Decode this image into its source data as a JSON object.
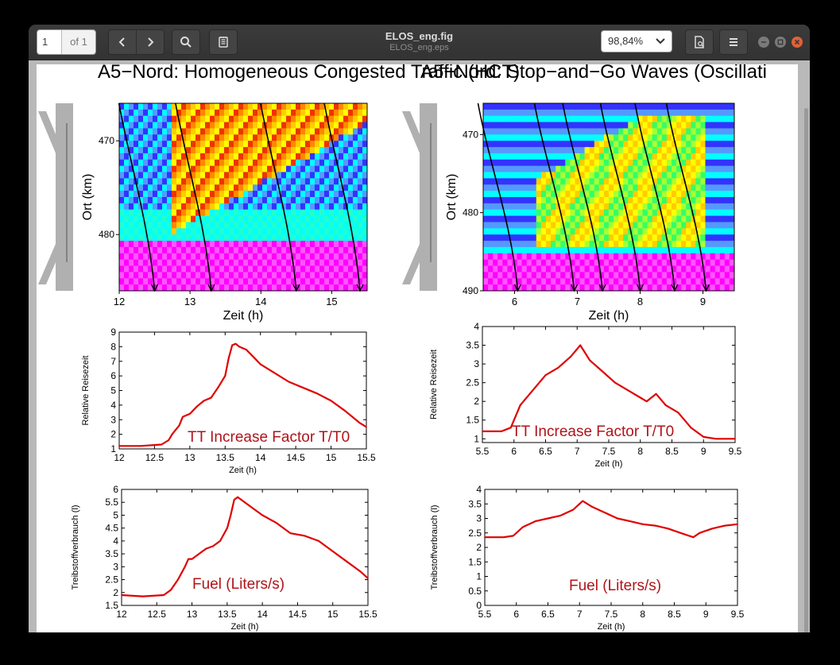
{
  "toolbar": {
    "page_current": "1",
    "page_total": "of 1",
    "title": "ELOS_eng.fig",
    "subtitle": "ELOS_eng.eps",
    "zoom": "98,84%",
    "icons": [
      "chevron-left-icon",
      "chevron-right-icon",
      "search-icon",
      "annotations-icon",
      "chevron-down-icon",
      "document-icon",
      "menu-icon",
      "minimize-icon",
      "maximize-icon",
      "close-icon"
    ]
  },
  "figure": {
    "left_title": "A5−Nord: Homogeneous Congested Traffic (HCT)",
    "right_title": "A5−Nord: Stop−and−Go Waves (Oscillati",
    "colors": {
      "curve": "#e00000",
      "label": "#b0141a",
      "trajectory": "#000000",
      "road": "#b0b0b0"
    }
  },
  "chart_data": [
    {
      "type": "heatmap",
      "panel": "left-top",
      "xlabel": "Zeit (h)",
      "ylabel": "Ort (km)",
      "xlim": [
        12,
        15.5
      ],
      "ylim": [
        486,
        466
      ],
      "xticks": [
        "12",
        "13",
        "14",
        "15"
      ],
      "yticks": [
        "470",
        "480"
      ],
      "trajectory_end_times": [
        12.5,
        13.3,
        14.5,
        15.4
      ]
    },
    {
      "type": "heatmap",
      "panel": "right-top",
      "xlabel": "Zeit (h)",
      "ylabel": "Ort (km)",
      "xlim": [
        5.5,
        9.5
      ],
      "ylim": [
        490,
        466
      ],
      "xticks": [
        "6",
        "7",
        "8",
        "9"
      ],
      "yticks": [
        "470",
        "480",
        "490"
      ],
      "trajectory_end_times": [
        6.05,
        6.95,
        7.4,
        8.0,
        8.55,
        9.05
      ]
    },
    {
      "type": "line",
      "panel": "left-middle",
      "xlabel": "Zeit (h)",
      "ylabel": "Relative Reisezeit",
      "annotation": "TT Increase Factor T/T0",
      "xlim": [
        12,
        15.5
      ],
      "ylim": [
        1,
        9
      ],
      "xticks": [
        "12",
        "12.5",
        "13",
        "13.5",
        "14",
        "14.5",
        "15",
        "15.5"
      ],
      "yticks": [
        "1",
        "2",
        "3",
        "4",
        "5",
        "6",
        "7",
        "8",
        "9"
      ],
      "series": [
        {
          "x": [
            12.0,
            12.3,
            12.6,
            12.7,
            12.75,
            12.85,
            12.9,
            12.95,
            13.0,
            13.1,
            13.2,
            13.3,
            13.4,
            13.5,
            13.55,
            13.6,
            13.65,
            13.7,
            13.8,
            13.9,
            14.0,
            14.2,
            14.4,
            14.6,
            14.8,
            15.0,
            15.2,
            15.4,
            15.5
          ],
          "values": [
            1.2,
            1.2,
            1.3,
            1.6,
            2.0,
            2.6,
            3.2,
            3.3,
            3.4,
            3.9,
            4.3,
            4.5,
            5.2,
            6.0,
            7.2,
            8.1,
            8.2,
            8.0,
            7.8,
            7.3,
            6.8,
            6.2,
            5.6,
            5.2,
            4.8,
            4.3,
            3.6,
            2.8,
            2.5
          ]
        }
      ]
    },
    {
      "type": "line",
      "panel": "right-middle",
      "xlabel": "Zeit (h)",
      "ylabel": "Relative Reisezeit",
      "annotation": "TT Increase Factor T/T0",
      "xlim": [
        5.5,
        9.5
      ],
      "ylim": [
        0.9,
        4
      ],
      "xticks": [
        "5.5",
        "6",
        "6.5",
        "7",
        "7.5",
        "8",
        "8.5",
        "9",
        "9.5"
      ],
      "yticks": [
        "1",
        "1.5",
        "2",
        "2.5",
        "3",
        "3.5",
        "4"
      ],
      "series": [
        {
          "x": [
            5.5,
            5.8,
            5.95,
            6.1,
            6.3,
            6.5,
            6.7,
            6.9,
            7.05,
            7.2,
            7.4,
            7.6,
            7.8,
            8.0,
            8.1,
            8.25,
            8.4,
            8.6,
            8.8,
            9.0,
            9.2,
            9.5
          ],
          "values": [
            1.2,
            1.2,
            1.3,
            1.9,
            2.3,
            2.7,
            2.9,
            3.2,
            3.5,
            3.1,
            2.8,
            2.5,
            2.3,
            2.1,
            2.0,
            2.2,
            1.9,
            1.7,
            1.3,
            1.05,
            1.0,
            1.0
          ]
        }
      ]
    },
    {
      "type": "line",
      "panel": "left-bottom",
      "xlabel": "Zeit (h)",
      "ylabel": "Treibstoffverbrauch (l)",
      "annotation": "Fuel (Liters/s)",
      "xlim": [
        12,
        15.5
      ],
      "ylim": [
        1.5,
        6
      ],
      "xticks": [
        "12",
        "12.5",
        "13",
        "13.5",
        "14",
        "14.5",
        "15",
        "15.5"
      ],
      "yticks": [
        "1.5",
        "2",
        "2.5",
        "3",
        "3.5",
        "4",
        "4.5",
        "5",
        "5.5",
        "6"
      ],
      "series": [
        {
          "x": [
            12.0,
            12.3,
            12.6,
            12.7,
            12.8,
            12.9,
            12.95,
            13.0,
            13.1,
            13.2,
            13.3,
            13.4,
            13.5,
            13.55,
            13.6,
            13.65,
            13.7,
            13.8,
            13.9,
            14.0,
            14.2,
            14.4,
            14.6,
            14.8,
            15.0,
            15.2,
            15.4,
            15.5
          ],
          "values": [
            1.9,
            1.85,
            1.9,
            2.1,
            2.5,
            3.0,
            3.3,
            3.3,
            3.5,
            3.7,
            3.8,
            4.0,
            4.5,
            5.0,
            5.6,
            5.7,
            5.6,
            5.4,
            5.2,
            5.0,
            4.7,
            4.3,
            4.2,
            4.0,
            3.6,
            3.2,
            2.8,
            2.55
          ]
        }
      ]
    },
    {
      "type": "line",
      "panel": "right-bottom",
      "xlabel": "Zeit (h)",
      "ylabel": "Treibstoffverbrauch (l)",
      "annotation": "Fuel (Liters/s)",
      "xlim": [
        5.5,
        9.5
      ],
      "ylim": [
        0,
        4
      ],
      "xticks": [
        "5.5",
        "6",
        "6.5",
        "7",
        "7.5",
        "8",
        "8.5",
        "9",
        "9.5"
      ],
      "yticks": [
        "0",
        "0.5",
        "1",
        "1.5",
        "2",
        "2.5",
        "3",
        "3.5",
        "4"
      ],
      "series": [
        {
          "x": [
            5.5,
            5.8,
            5.95,
            6.1,
            6.3,
            6.5,
            6.7,
            6.9,
            7.05,
            7.2,
            7.4,
            7.6,
            7.8,
            8.0,
            8.2,
            8.4,
            8.6,
            8.8,
            8.9,
            9.1,
            9.3,
            9.5
          ],
          "values": [
            2.35,
            2.35,
            2.4,
            2.7,
            2.9,
            3.0,
            3.1,
            3.3,
            3.6,
            3.4,
            3.2,
            3.0,
            2.9,
            2.8,
            2.75,
            2.65,
            2.5,
            2.35,
            2.5,
            2.65,
            2.75,
            2.8
          ]
        }
      ]
    }
  ]
}
